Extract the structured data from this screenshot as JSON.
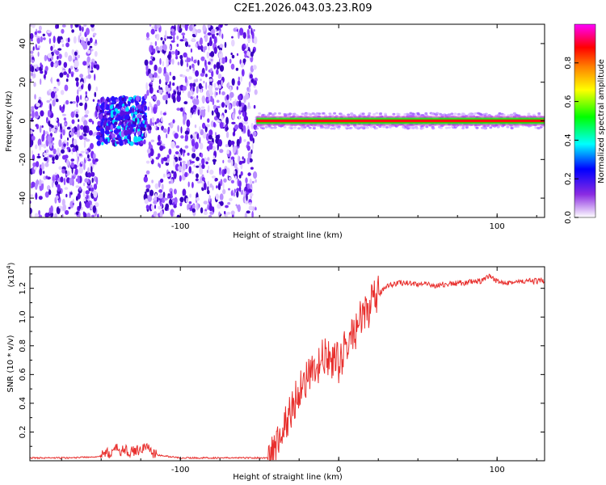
{
  "title": "C2E1.2026.043.03.23.R09",
  "chart_data": [
    {
      "type": "heatmap",
      "xlabel": "Height of straight line (km)",
      "ylabel": "Frequency (Hz)",
      "xlim": [
        -195,
        130
      ],
      "ylim": [
        -50,
        50
      ],
      "x_ticks": [
        -100,
        0,
        100
      ],
      "x_tick_labels": [
        "-100",
        "",
        "100"
      ],
      "y_ticks": [
        40,
        20,
        0,
        -20,
        -40
      ],
      "colorbar": {
        "label": "Normalized spectral amplitude",
        "range": [
          0,
          1
        ],
        "ticks": [
          0.0,
          0.2,
          0.4,
          0.6,
          0.8
        ],
        "tick_labels": [
          "0.0",
          "0.2",
          "0.4",
          "0.6",
          "0.8"
        ],
        "colormap": [
          "#ffffff",
          "#8a2be2",
          "#0000ff",
          "#00ffff",
          "#00ff00",
          "#ffff00",
          "#ff8000",
          "#ff0000",
          "#ff00ff"
        ]
      },
      "regions": [
        {
          "x_range": [
            -195,
            -152
          ],
          "content": "broadband noise"
        },
        {
          "x_range": [
            -152,
            -122
          ],
          "content": "noise near 0 Hz"
        },
        {
          "x_range": [
            -122,
            -52
          ],
          "content": "broadband noise"
        },
        {
          "x_range": [
            -52,
            130
          ],
          "content": "narrow line near 0 Hz"
        }
      ]
    },
    {
      "type": "line",
      "xlabel": "Height of straight line (km)",
      "ylabel": "SNR (10 * v/v)",
      "y_multiplier": "(x10",
      "y_multiplier_exp": "4",
      "xlim": [
        -195,
        130
      ],
      "ylim": [
        0,
        1.35
      ],
      "x_ticks": [
        -100,
        0,
        100
      ],
      "x_tick_labels": [
        "-100",
        "0",
        "100"
      ],
      "y_ticks": [
        0.2,
        0.4,
        0.6,
        0.8,
        1.0,
        1.2
      ],
      "y_tick_labels": [
        "0.2",
        "0.4",
        "0.6",
        "0.8",
        "1.0",
        "1.2"
      ],
      "color": "#e8302e",
      "series": [
        {
          "x": [
            -195,
            -170,
            -150,
            -140,
            -130,
            -122,
            -115,
            -100,
            -80,
            -60,
            -45,
            -40,
            -35,
            -30,
            -25,
            -20,
            -15,
            -10,
            -5,
            0,
            5,
            10,
            15,
            20,
            25,
            30,
            40,
            50,
            60,
            70,
            80,
            90,
            95,
            100,
            110,
            120,
            130
          ],
          "y": [
            0.02,
            0.02,
            0.03,
            0.08,
            0.06,
            0.1,
            0.04,
            0.02,
            0.02,
            0.02,
            0.02,
            0.08,
            0.22,
            0.35,
            0.5,
            0.58,
            0.6,
            0.72,
            0.7,
            0.68,
            0.8,
            0.9,
            1.0,
            1.08,
            1.15,
            1.22,
            1.24,
            1.23,
            1.22,
            1.23,
            1.24,
            1.25,
            1.28,
            1.25,
            1.24,
            1.25,
            1.25
          ]
        }
      ]
    }
  ]
}
